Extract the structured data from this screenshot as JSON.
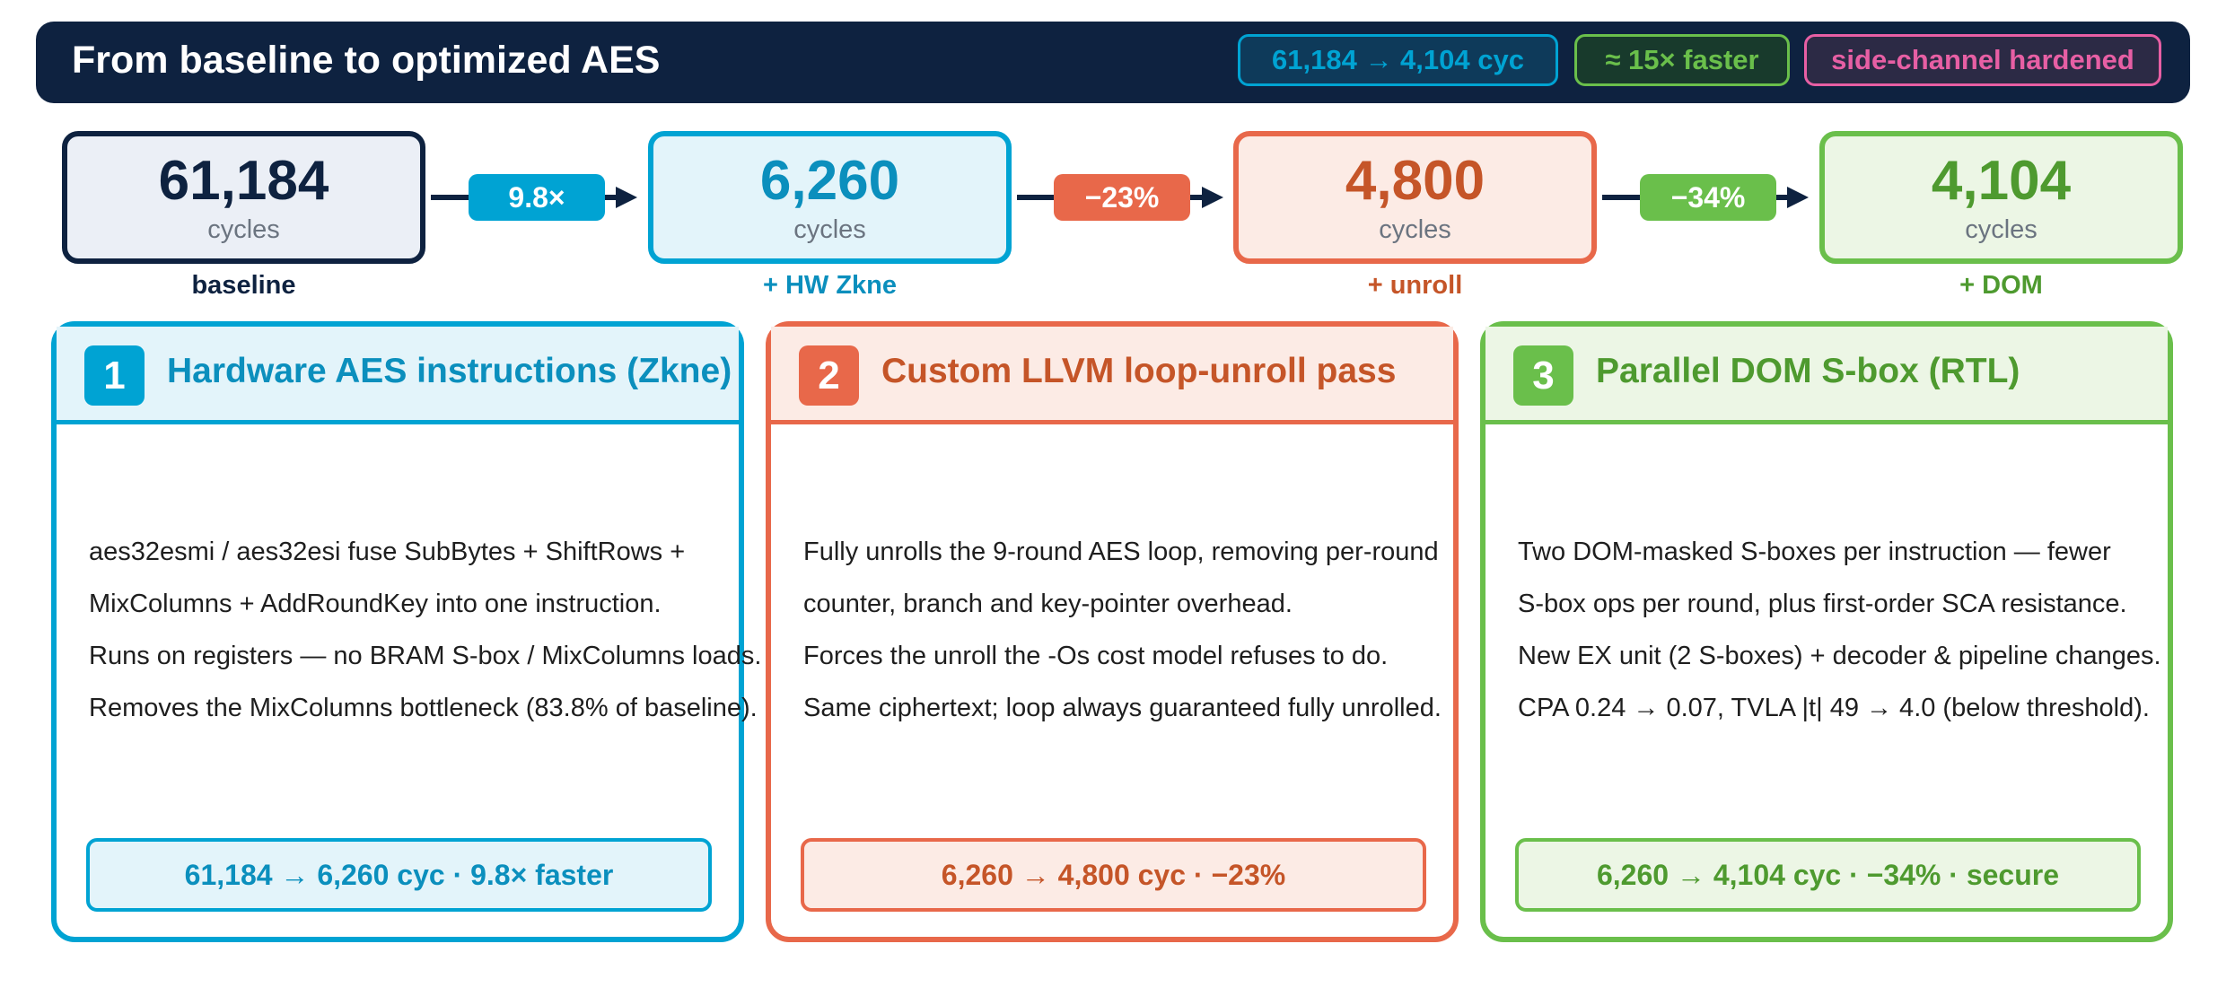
{
  "header": {
    "title": "From baseline to optimized AES",
    "pills": [
      "61,184 → 4,104 cyc",
      "≈ 15× faster",
      "side-channel hardened"
    ]
  },
  "colors": {
    "navy": "#0e2240",
    "blue": "#00a3d3",
    "orange": "#e8684a",
    "green": "#6abf4b",
    "pink": "#e75fa4"
  },
  "pipeline": {
    "stages": [
      {
        "value": "61,184",
        "unit": "cycles",
        "label": "baseline"
      },
      {
        "value": "6,260",
        "unit": "cycles",
        "label": "+ HW Zkne"
      },
      {
        "value": "4,800",
        "unit": "cycles",
        "label": "+ unroll"
      },
      {
        "value": "4,104",
        "unit": "cycles",
        "label": "+ DOM"
      }
    ],
    "transitions": [
      "9.8×",
      "−23%",
      "−34%"
    ]
  },
  "cards": [
    {
      "number": "1",
      "title": "Hardware AES instructions (Zkne)",
      "lines": [
        "aes32esmi / aes32esi fuse SubBytes + ShiftRows +",
        "MixColumns + AddRoundKey into one instruction.",
        "Runs on registers — no BRAM S-box / MixColumns loads.",
        "Removes the MixColumns bottleneck (83.8% of baseline)."
      ],
      "result": "61,184 → 6,260 cyc  ·  9.8× faster"
    },
    {
      "number": "2",
      "title": "Custom LLVM loop-unroll pass",
      "lines": [
        "Fully unrolls the 9-round AES loop, removing per-round",
        "counter, branch and key-pointer overhead.",
        "Forces the unroll the -Os cost model refuses to do.",
        "Same ciphertext; loop always guaranteed fully unrolled."
      ],
      "result": "6,260 → 4,800 cyc  ·  −23%"
    },
    {
      "number": "3",
      "title": "Parallel DOM S-box (RTL)",
      "lines": [
        "Two DOM-masked S-boxes per instruction — fewer",
        "S-box ops per round, plus first-order SCA resistance.",
        "New EX unit (2 S-boxes) + decoder & pipeline changes.",
        "CPA 0.24 → 0.07,  TVLA |t| 49 → 4.0 (below threshold)."
      ],
      "result": "6,260 → 4,104 cyc  ·  −34%  ·  secure"
    }
  ]
}
